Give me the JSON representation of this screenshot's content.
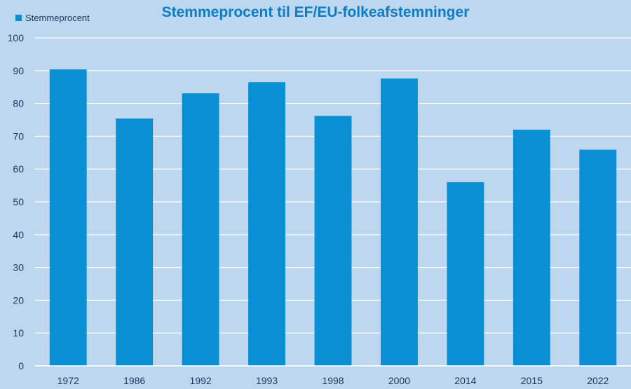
{
  "chart_data": {
    "type": "bar",
    "title": "Stemmeprocent til EF/EU-folkeafstemninger",
    "xlabel": "",
    "ylabel": "",
    "categories": [
      "1972",
      "1986",
      "1992",
      "1993",
      "1998",
      "2000",
      "2014",
      "2015",
      "2022"
    ],
    "series": [
      {
        "name": "Stemmeprocent",
        "values": [
          90.4,
          75.4,
          83.1,
          86.5,
          76.2,
          87.6,
          56.0,
          72.0,
          65.9
        ]
      }
    ],
    "ylim": [
      0,
      100
    ],
    "yticks": [
      "0",
      "10",
      "20",
      "30",
      "40",
      "50",
      "60",
      "70",
      "80",
      "90",
      "100"
    ],
    "grid": true,
    "legend_position": "top-left",
    "colors": {
      "bar": "#0b8fd4",
      "background": "#bdd7ee",
      "grid": "#ffffff",
      "title": "#0c7cc4",
      "text": "#1f3864"
    }
  }
}
